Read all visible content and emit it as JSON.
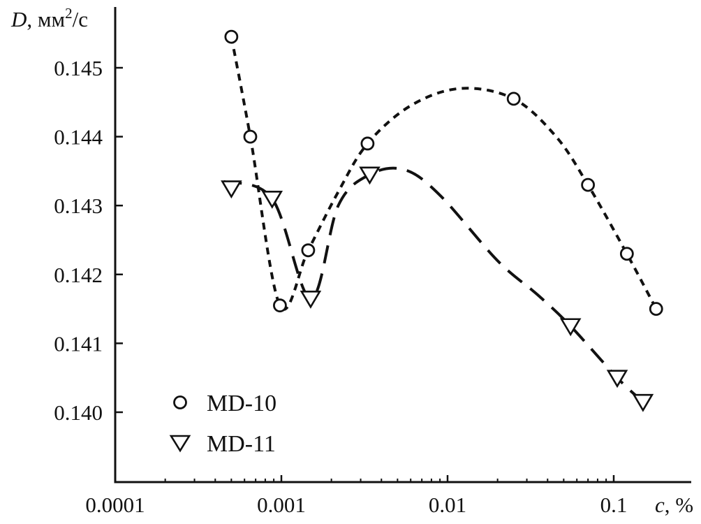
{
  "chart_data": {
    "type": "scatter",
    "title": "",
    "x_scale": "log",
    "xlim": [
      0.0001,
      0.18
    ],
    "ylim": [
      0.1389,
      0.1459
    ],
    "x_ticks": [
      0.0001,
      0.001,
      0.01,
      0.1
    ],
    "x_tick_labels": [
      "0.0001",
      "0.001",
      "0.01",
      "0.1"
    ],
    "y_ticks": [
      0.14,
      0.141,
      0.142,
      0.143,
      0.144,
      0.145
    ],
    "y_tick_labels": [
      "0.140",
      "0.141",
      "0.142",
      "0.143",
      "0.144",
      "0.145"
    ],
    "xlabel": {
      "var": "c",
      "rest": ", %"
    },
    "ylabel": {
      "var": "D",
      "rest": ", мм",
      "sup": "2",
      "tail": "/с"
    },
    "grid": false,
    "legend_position": "bottom-left",
    "series": [
      {
        "name": "MD-10",
        "marker": "circle",
        "line_style": "short-dash",
        "points": [
          {
            "x": 0.0005,
            "y": 0.14545
          },
          {
            "x": 0.00065,
            "y": 0.144
          },
          {
            "x": 0.00098,
            "y": 0.14155
          },
          {
            "x": 0.00145,
            "y": 0.14235
          },
          {
            "x": 0.0033,
            "y": 0.1439
          },
          {
            "x": 0.025,
            "y": 0.14455
          },
          {
            "x": 0.07,
            "y": 0.1433
          },
          {
            "x": 0.12,
            "y": 0.1423
          },
          {
            "x": 0.18,
            "y": 0.1415
          }
        ],
        "fit_curve": [
          {
            "x": 0.0005,
            "y": 0.14545
          },
          {
            "x": 0.00065,
            "y": 0.144
          },
          {
            "x": 0.00098,
            "y": 0.14155
          },
          {
            "x": 0.00145,
            "y": 0.14235
          },
          {
            "x": 0.0022,
            "y": 0.1432
          },
          {
            "x": 0.0033,
            "y": 0.1439
          },
          {
            "x": 0.006,
            "y": 0.14445
          },
          {
            "x": 0.012,
            "y": 0.1447
          },
          {
            "x": 0.025,
            "y": 0.14455
          },
          {
            "x": 0.045,
            "y": 0.144
          },
          {
            "x": 0.07,
            "y": 0.1433
          },
          {
            "x": 0.12,
            "y": 0.1423
          },
          {
            "x": 0.18,
            "y": 0.1415
          }
        ]
      },
      {
        "name": "MD-11",
        "marker": "triangle-down",
        "line_style": "long-dash",
        "points": [
          {
            "x": 0.0005,
            "y": 0.14325
          },
          {
            "x": 0.00088,
            "y": 0.1431
          },
          {
            "x": 0.0015,
            "y": 0.14165
          },
          {
            "x": 0.0034,
            "y": 0.14345
          },
          {
            "x": 0.055,
            "y": 0.14125
          },
          {
            "x": 0.105,
            "y": 0.1405
          },
          {
            "x": 0.15,
            "y": 0.14015
          }
        ],
        "fit_curve": [
          {
            "x": 0.00045,
            "y": 0.14335
          },
          {
            "x": 0.00088,
            "y": 0.1431
          },
          {
            "x": 0.0015,
            "y": 0.14165
          },
          {
            "x": 0.0022,
            "y": 0.143
          },
          {
            "x": 0.0034,
            "y": 0.14345
          },
          {
            "x": 0.0055,
            "y": 0.14352
          },
          {
            "x": 0.009,
            "y": 0.14315
          },
          {
            "x": 0.02,
            "y": 0.1422
          },
          {
            "x": 0.035,
            "y": 0.1417
          },
          {
            "x": 0.055,
            "y": 0.14125
          },
          {
            "x": 0.105,
            "y": 0.1405
          },
          {
            "x": 0.15,
            "y": 0.14015
          }
        ]
      }
    ]
  }
}
